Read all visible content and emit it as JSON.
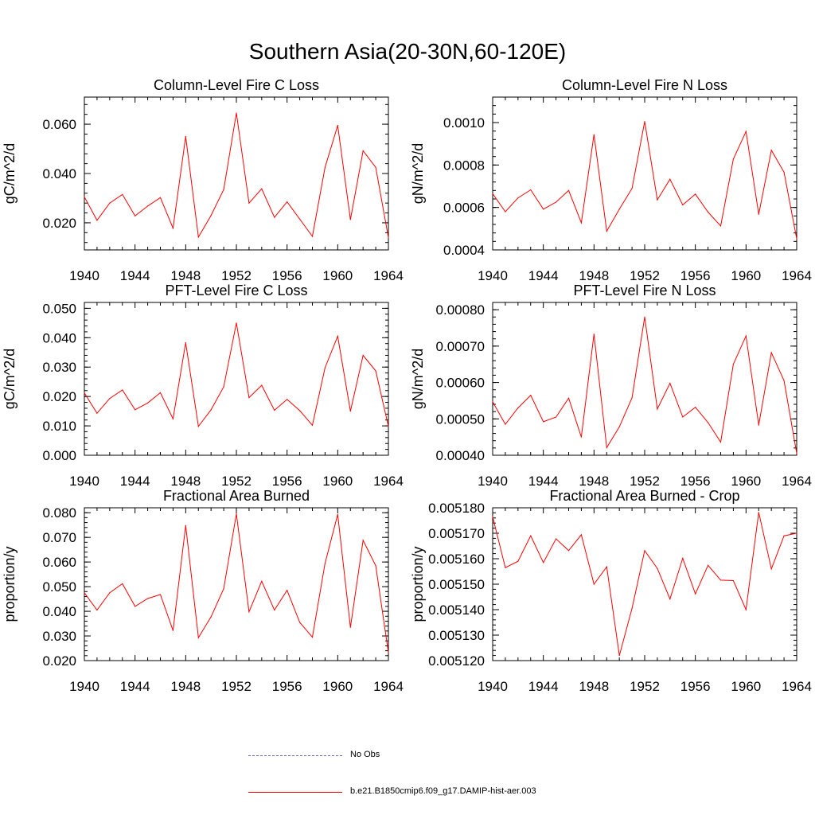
{
  "title": "Southern Asia(20-30N,60-120E)",
  "series_color": "#ff0000",
  "legend": [
    {
      "label": "No Obs",
      "color": "#6666aa",
      "style": "dashed"
    },
    {
      "label": "b.e21.B1850cmip6.f09_g17.DAMIP-hist-aer.003",
      "color": "#ff0000",
      "style": "solid"
    }
  ],
  "chart_data": [
    {
      "type": "line",
      "title": "Column-Level Fire C Loss",
      "xlabel": "",
      "ylabel": "gC/m^2/d",
      "xlim": [
        1940,
        1964
      ],
      "ylim": [
        0.009,
        0.071
      ],
      "xticks": [
        "1940",
        "1944",
        "1948",
        "1952",
        "1956",
        "1960",
        "1964"
      ],
      "yticks": [
        "0.020",
        "0.040",
        "0.060"
      ],
      "ytick_values": [
        0.02,
        0.04,
        0.06
      ],
      "yminor_step": 0.004,
      "x": [
        1940,
        1941,
        1942,
        1943,
        1944,
        1945,
        1946,
        1947,
        1948,
        1949,
        1950,
        1951,
        1952,
        1953,
        1954,
        1955,
        1956,
        1957,
        1958,
        1959,
        1960,
        1961,
        1962,
        1963,
        1964
      ],
      "series": [
        {
          "values": [
            0.0305,
            0.021,
            0.028,
            0.0315,
            0.0228,
            0.0268,
            0.0302,
            0.0178,
            0.055,
            0.0142,
            0.023,
            0.0335,
            0.0645,
            0.028,
            0.0338,
            0.0222,
            0.0285,
            0.0215,
            0.0145,
            0.0425,
            0.0595,
            0.0213,
            0.0492,
            0.0425,
            0.014
          ]
        }
      ]
    },
    {
      "type": "line",
      "title": "Column-Level Fire N Loss",
      "xlabel": "",
      "ylabel": "gN/m^2/d",
      "xlim": [
        1940,
        1964
      ],
      "ylim": [
        0.0004,
        0.00112
      ],
      "xticks": [
        "1940",
        "1944",
        "1948",
        "1952",
        "1956",
        "1960",
        "1964"
      ],
      "yticks": [
        "0.0004",
        "0.0006",
        "0.0008",
        "0.0010"
      ],
      "ytick_values": [
        0.0004,
        0.0006,
        0.0008,
        0.001
      ],
      "yminor_step": 4e-05,
      "x": [
        1940,
        1941,
        1942,
        1943,
        1944,
        1945,
        1946,
        1947,
        1948,
        1949,
        1950,
        1951,
        1952,
        1953,
        1954,
        1955,
        1956,
        1957,
        1958,
        1959,
        1960,
        1961,
        1962,
        1963,
        1964
      ],
      "series": [
        {
          "values": [
            0.000665,
            0.00058,
            0.000645,
            0.000683,
            0.000592,
            0.000625,
            0.00068,
            0.000528,
            0.000943,
            0.000488,
            0.000592,
            0.00069,
            0.001005,
            0.000636,
            0.000733,
            0.000612,
            0.000663,
            0.000578,
            0.000513,
            0.000828,
            0.000958,
            0.000568,
            0.00087,
            0.000766,
            0.000452
          ]
        }
      ]
    },
    {
      "type": "line",
      "title": "PFT-Level Fire C Loss",
      "xlabel": "",
      "ylabel": "gC/m^2/d",
      "xlim": [
        1940,
        1964
      ],
      "ylim": [
        0.0,
        0.052
      ],
      "xticks": [
        "1940",
        "1944",
        "1948",
        "1952",
        "1956",
        "1960",
        "1964"
      ],
      "yticks": [
        "0.000",
        "0.010",
        "0.020",
        "0.030",
        "0.040",
        "0.050"
      ],
      "ytick_values": [
        0.0,
        0.01,
        0.02,
        0.03,
        0.04,
        0.05
      ],
      "yminor_step": 0.002,
      "x": [
        1940,
        1941,
        1942,
        1943,
        1944,
        1945,
        1946,
        1947,
        1948,
        1949,
        1950,
        1951,
        1952,
        1953,
        1954,
        1955,
        1956,
        1957,
        1958,
        1959,
        1960,
        1961,
        1962,
        1963,
        1964
      ],
      "series": [
        {
          "values": [
            0.0212,
            0.0143,
            0.0193,
            0.0222,
            0.0155,
            0.0178,
            0.0213,
            0.0124,
            0.0383,
            0.0098,
            0.0155,
            0.0233,
            0.045,
            0.0196,
            0.0238,
            0.0153,
            0.019,
            0.0152,
            0.0102,
            0.0298,
            0.0405,
            0.015,
            0.034,
            0.0287,
            0.0098
          ]
        }
      ]
    },
    {
      "type": "line",
      "title": "PFT-Level Fire N Loss",
      "xlabel": "",
      "ylabel": "gN/m^2/d",
      "xlim": [
        1940,
        1964
      ],
      "ylim": [
        0.0004,
        0.00082
      ],
      "xticks": [
        "1940",
        "1944",
        "1948",
        "1952",
        "1956",
        "1960",
        "1964"
      ],
      "yticks": [
        "0.00040",
        "0.00050",
        "0.00060",
        "0.00070",
        "0.00080"
      ],
      "ytick_values": [
        0.0004,
        0.0005,
        0.0006,
        0.0007,
        0.0008
      ],
      "yminor_step": 2e-05,
      "x": [
        1940,
        1941,
        1942,
        1943,
        1944,
        1945,
        1946,
        1947,
        1948,
        1949,
        1950,
        1951,
        1952,
        1953,
        1954,
        1955,
        1956,
        1957,
        1958,
        1959,
        1960,
        1961,
        1962,
        1963,
        1964
      ],
      "series": [
        {
          "values": [
            0.000547,
            0.000485,
            0.00053,
            0.000565,
            0.000492,
            0.000505,
            0.000557,
            0.00045,
            0.000733,
            0.000421,
            0.000478,
            0.000558,
            0.00078,
            0.000527,
            0.000598,
            0.000505,
            0.000532,
            0.00049,
            0.000436,
            0.00065,
            0.000728,
            0.000483,
            0.000682,
            0.000605,
            0.000405
          ]
        }
      ]
    },
    {
      "type": "line",
      "title": "Fractional Area Burned",
      "xlabel": "",
      "ylabel": "proportion/y",
      "xlim": [
        1940,
        1964
      ],
      "ylim": [
        0.02,
        0.082
      ],
      "xticks": [
        "1940",
        "1944",
        "1948",
        "1952",
        "1956",
        "1960",
        "1964"
      ],
      "yticks": [
        "0.020",
        "0.030",
        "0.040",
        "0.050",
        "0.060",
        "0.070",
        "0.080"
      ],
      "ytick_values": [
        0.02,
        0.03,
        0.04,
        0.05,
        0.06,
        0.07,
        0.08
      ],
      "yminor_step": 0.002,
      "x": [
        1940,
        1941,
        1942,
        1943,
        1944,
        1945,
        1946,
        1947,
        1948,
        1949,
        1950,
        1951,
        1952,
        1953,
        1954,
        1955,
        1956,
        1957,
        1958,
        1959,
        1960,
        1961,
        1962,
        1963,
        1964
      ],
      "series": [
        {
          "values": [
            0.0475,
            0.0405,
            0.0475,
            0.0512,
            0.042,
            0.0452,
            0.0468,
            0.0322,
            0.0748,
            0.0293,
            0.0378,
            0.0492,
            0.0795,
            0.0398,
            0.0522,
            0.0405,
            0.0485,
            0.0355,
            0.0295,
            0.0595,
            0.0793,
            0.0335,
            0.0688,
            0.0585,
            0.0232
          ]
        }
      ]
    },
    {
      "type": "line",
      "title": "Fractional Area Burned - Crop",
      "xlabel": "",
      "ylabel": "proportion/y",
      "xlim": [
        1940,
        1964
      ],
      "ylim": [
        0.00512,
        0.00518
      ],
      "xticks": [
        "1940",
        "1944",
        "1948",
        "1952",
        "1956",
        "1960",
        "1964"
      ],
      "yticks": [
        "0.005120",
        "0.005130",
        "0.005140",
        "0.005150",
        "0.005160",
        "0.005170",
        "0.005180"
      ],
      "ytick_values": [
        0.00512,
        0.00513,
        0.00514,
        0.00515,
        0.00516,
        0.00517,
        0.00518
      ],
      "yminor_step": 2e-06,
      "x": [
        1940,
        1941,
        1942,
        1943,
        1944,
        1945,
        1946,
        1947,
        1948,
        1949,
        1950,
        1951,
        1952,
        1953,
        1954,
        1955,
        1956,
        1957,
        1958,
        1959,
        1960,
        1961,
        1962,
        1963,
        1964
      ],
      "series": [
        {
          "values": [
            0.0051765,
            0.0051565,
            0.005159,
            0.005169,
            0.0051585,
            0.0051678,
            0.0051632,
            0.0051694,
            0.00515,
            0.0051568,
            0.005122,
            0.0051405,
            0.0051632,
            0.0051562,
            0.0051442,
            0.0051602,
            0.0051462,
            0.0051574,
            0.0051516,
            0.0051514,
            0.00514,
            0.0051782,
            0.005156,
            0.005169,
            0.00517
          ]
        }
      ]
    }
  ]
}
